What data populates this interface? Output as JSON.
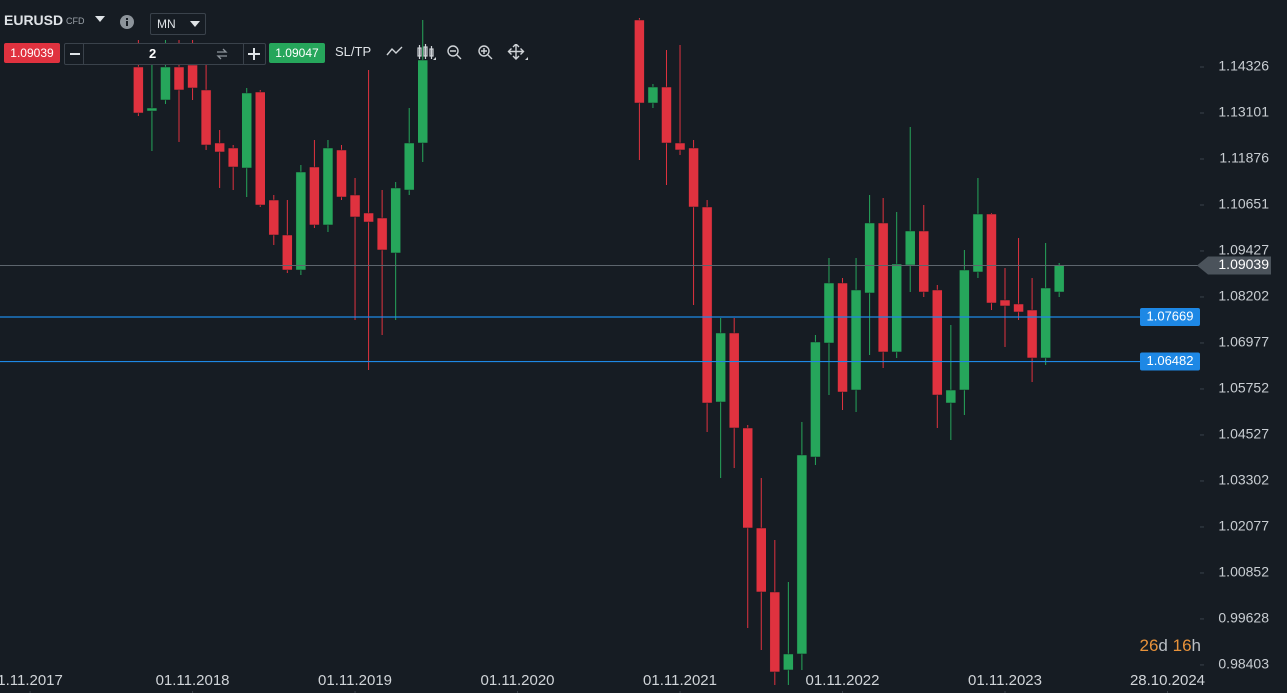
{
  "toolbar": {
    "symbol": "EURUSD",
    "symbol_type": "CFD",
    "timeframe": "MN",
    "sell_price": "1.09039",
    "quantity": "2",
    "buy_price": "1.09047",
    "sltp": "SL/TP"
  },
  "timer": {
    "days": "26",
    "days_unit": "d",
    "hours": "16",
    "hours_unit": "h"
  },
  "chart_data": {
    "type": "candlestick",
    "up_color": "#26a65b",
    "down_color": "#e0323f",
    "x": [
      8,
      9,
      10,
      11,
      12,
      13,
      14,
      15,
      16,
      17,
      18,
      19,
      20,
      21,
      22,
      23,
      24,
      25,
      26,
      27,
      28,
      29,
      45,
      46,
      47,
      48,
      49,
      50,
      51,
      52,
      53,
      54,
      55,
      56,
      57,
      58,
      59,
      60,
      61,
      62,
      63,
      64,
      65,
      66,
      67,
      68,
      69,
      70,
      71,
      72,
      73,
      74,
      75,
      76
    ],
    "open": [
      1.14326,
      1.13154,
      1.13447,
      1.14326,
      1.14379,
      1.13714,
      1.12302,
      1.12169,
      1.11636,
      1.1366,
      1.10784,
      1.09852,
      1.0892,
      1.11663,
      1.10119,
      1.12116,
      1.10917,
      1.10438,
      1.10305,
      1.09373,
      1.1105,
      1.12302,
      1.15578,
      1.13367,
      1.13793,
      1.12302,
      1.12169,
      1.10598,
      1.05405,
      1.07243,
      1.04713,
      1.0205,
      1.00346,
      0.98269,
      0.98695,
      1.0394,
      1.06976,
      1.08574,
      1.05724,
      1.08308,
      1.10172,
      1.06737,
      1.09053,
      1.09959,
      1.08388,
      1.05378,
      1.05724,
      1.08867,
      1.10411,
      1.08121,
      1.08015,
      1.07855,
      1.06577,
      1.08334
    ],
    "high": [
      1.15045,
      1.14512,
      1.15045,
      1.15045,
      1.15045,
      1.14512,
      1.12648,
      1.12249,
      1.13767,
      1.13714,
      1.10917,
      1.10784,
      1.11716,
      1.12382,
      1.12382,
      1.12249,
      1.1137,
      1.14246,
      1.1105,
      1.11264,
      1.13234,
      1.15578,
      1.15631,
      1.13873,
      1.14779,
      1.14912,
      1.12382,
      1.10784,
      1.07642,
      1.07642,
      1.04793,
      1.03381,
      1.0173,
      1.00612,
      1.04872,
      1.0719,
      1.0924,
      1.08707,
      1.0924,
      1.10917,
      1.10837,
      1.10465,
      1.12728,
      1.10651,
      1.08521,
      1.07456,
      1.09453,
      1.1137,
      1.10438,
      1.08973,
      1.09772,
      1.08707,
      1.09639,
      1.09107
    ],
    "low": [
      1.13021,
      1.12089,
      1.13341,
      1.12329,
      1.13447,
      1.12116,
      1.11104,
      1.1105,
      1.10864,
      1.10598,
      1.09586,
      1.0884,
      1.08787,
      1.10039,
      1.09932,
      1.10784,
      1.07589,
      1.06257,
      1.0719,
      1.07589,
      1.10917,
      1.11796,
      1.11849,
      1.13234,
      1.11184,
      1.11983,
      1.07988,
      1.04606,
      1.03381,
      1.03647,
      0.99387,
      0.98801,
      0.9787,
      0.9787,
      0.98269,
      1.03727,
      1.05591,
      1.05192,
      1.05139,
      1.06657,
      1.0631,
      1.06577,
      1.08334,
      1.08201,
      1.04713,
      1.04393,
      1.05059,
      1.08707,
      1.07855,
      1.0687,
      1.07589,
      1.05937,
      1.0639,
      1.08201
    ],
    "close": [
      1.13101,
      1.13234,
      1.14326,
      1.13714,
      1.13767,
      1.12249,
      1.12063,
      1.11663,
      1.13634,
      1.10651,
      1.09852,
      1.0892,
      1.1153,
      1.10119,
      1.12169,
      1.10864,
      1.10332,
      1.10198,
      1.09453,
      1.11104,
      1.12302,
      1.14512,
      1.13367,
      1.13793,
      1.12302,
      1.12116,
      1.10598,
      1.05378,
      1.07243,
      1.04713,
      1.0205,
      1.00346,
      0.98216,
      0.98695,
      1.03994,
      1.07003,
      1.08574,
      1.05671,
      1.08388,
      1.10172,
      1.06737,
      1.0908,
      1.09959,
      1.08334,
      1.05591,
      1.05724,
      1.0892,
      1.10411,
      1.08041,
      1.07962,
      1.07802,
      1.06577,
      1.08441,
      1.09039
    ],
    "xlim": [
      -2.22,
      86.4
    ],
    "xticks": [
      {
        "value": 0,
        "label": "1.11.2017"
      },
      {
        "value": 12,
        "label": "01.11.2018"
      },
      {
        "value": 24,
        "label": "01.11.2019"
      },
      {
        "value": 36,
        "label": "01.11.2020"
      },
      {
        "value": 48,
        "label": "01.11.2021"
      },
      {
        "value": 60,
        "label": "01.11.2022"
      },
      {
        "value": 72,
        "label": "01.11.2023"
      },
      {
        "value": 84,
        "label": "28.10.2024"
      }
    ],
    "ylim": [
      0.97709,
      1.1611
    ],
    "yticks": [
      1.14326,
      1.13101,
      1.11876,
      1.10651,
      1.09427,
      1.08202,
      1.06977,
      1.05752,
      1.04527,
      1.03302,
      1.02077,
      1.00852,
      0.99628,
      0.98403
    ],
    "current_price": 1.09039,
    "price_lines": [
      1.07669,
      1.06482
    ],
    "price_line_color": "#1e88e5"
  }
}
